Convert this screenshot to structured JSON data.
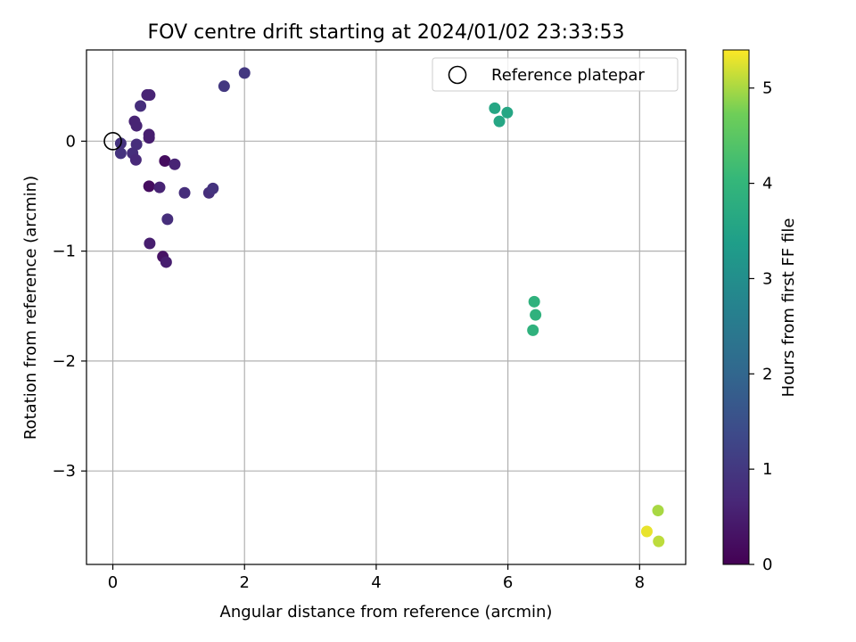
{
  "chart_data": {
    "type": "scatter",
    "title": "FOV centre drift starting at 2024/01/02 23:33:53",
    "xlabel": "Angular distance from reference (arcmin)",
    "ylabel": "Rotation from reference (arcmin)",
    "xlim": [
      -0.4,
      8.7
    ],
    "ylim": [
      -3.85,
      0.83
    ],
    "xticks": [
      0,
      2,
      4,
      6,
      8
    ],
    "yticks": [
      0,
      -1,
      -2,
      -3
    ],
    "grid": true,
    "legend": {
      "position": "top-right",
      "entries": [
        "Reference platepar"
      ]
    },
    "reference_point": {
      "x": 0,
      "y": 0
    },
    "colorbar": {
      "label": "Hours from first FF file",
      "range": [
        0,
        5.4
      ],
      "ticks": [
        0,
        1,
        2,
        3,
        4,
        5
      ],
      "colormap": "viridis"
    },
    "points": [
      {
        "x": 0.12,
        "y": -0.02,
        "h": 0.9
      },
      {
        "x": 0.12,
        "y": -0.11,
        "h": 0.9
      },
      {
        "x": 0.3,
        "y": -0.11,
        "h": 0.8
      },
      {
        "x": 0.35,
        "y": -0.17,
        "h": 0.7
      },
      {
        "x": 0.36,
        "y": -0.03,
        "h": 0.8
      },
      {
        "x": 0.33,
        "y": 0.18,
        "h": 0.6
      },
      {
        "x": 0.36,
        "y": 0.14,
        "h": 0.6
      },
      {
        "x": 0.42,
        "y": 0.32,
        "h": 0.8
      },
      {
        "x": 0.52,
        "y": 0.42,
        "h": 0.6
      },
      {
        "x": 0.56,
        "y": 0.42,
        "h": 0.6
      },
      {
        "x": 0.55,
        "y": 0.06,
        "h": 0.5
      },
      {
        "x": 0.55,
        "y": 0.03,
        "h": 0.5
      },
      {
        "x": 0.55,
        "y": -0.41,
        "h": 0.2
      },
      {
        "x": 0.71,
        "y": -0.42,
        "h": 0.6
      },
      {
        "x": 0.79,
        "y": -0.18,
        "h": 0.2
      },
      {
        "x": 0.94,
        "y": -0.21,
        "h": 0.6
      },
      {
        "x": 1.09,
        "y": -0.47,
        "h": 0.8
      },
      {
        "x": 1.46,
        "y": -0.47,
        "h": 0.8
      },
      {
        "x": 1.52,
        "y": -0.43,
        "h": 0.9
      },
      {
        "x": 0.83,
        "y": -0.71,
        "h": 0.8
      },
      {
        "x": 0.56,
        "y": -0.93,
        "h": 0.5
      },
      {
        "x": 0.76,
        "y": -1.05,
        "h": 0.3
      },
      {
        "x": 0.81,
        "y": -1.1,
        "h": 0.5
      },
      {
        "x": 1.69,
        "y": 0.5,
        "h": 1.0
      },
      {
        "x": 2.0,
        "y": 0.62,
        "h": 1.0
      },
      {
        "x": 5.8,
        "y": 0.3,
        "h": 3.6
      },
      {
        "x": 5.87,
        "y": 0.18,
        "h": 3.6
      },
      {
        "x": 5.99,
        "y": 0.26,
        "h": 3.6
      },
      {
        "x": 6.4,
        "y": -1.46,
        "h": 3.9
      },
      {
        "x": 6.42,
        "y": -1.58,
        "h": 3.9
      },
      {
        "x": 6.38,
        "y": -1.72,
        "h": 3.9
      },
      {
        "x": 8.28,
        "y": -3.36,
        "h": 5.0
      },
      {
        "x": 8.11,
        "y": -3.55,
        "h": 5.3
      },
      {
        "x": 8.29,
        "y": -3.64,
        "h": 5.1
      }
    ]
  }
}
